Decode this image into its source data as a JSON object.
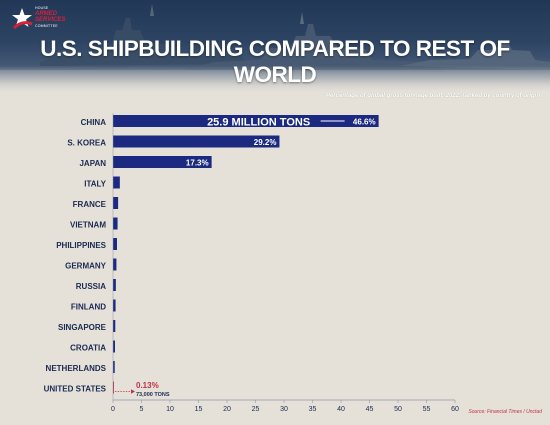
{
  "header": {
    "logo_top": "HOUSE",
    "logo_main": "ARMED SERVICES",
    "logo_bottom": "COMMITTEE",
    "title": "U.S. SHIPBUILDING COMPARED TO REST OF WORLD",
    "subtitle": "Percentage of global gross tonnage built, 2022, ranked by country of origin"
  },
  "source": "Source: Financial Times / Unctad",
  "colors": {
    "bar": "#1b2a80",
    "highlight": "#c0314a",
    "label": "#1b2a52",
    "background": "#e5e1d9"
  },
  "chart_data": {
    "type": "bar",
    "orientation": "horizontal",
    "categories": [
      "CHINA",
      "S. KOREA",
      "JAPAN",
      "ITALY",
      "FRANCE",
      "VIETNAM",
      "PHILIPPINES",
      "GERMANY",
      "RUSSIA",
      "FINLAND",
      "SINGAPORE",
      "CROATIA",
      "NETHERLANDS",
      "UNITED STATES"
    ],
    "values": [
      46.6,
      29.2,
      17.3,
      1.2,
      0.9,
      0.8,
      0.7,
      0.6,
      0.5,
      0.45,
      0.4,
      0.35,
      0.3,
      0.13
    ],
    "data_labels": {
      "CHINA": "46.6%",
      "S. KOREA": "29.2%",
      "JAPAN": "17.3%",
      "UNITED STATES": "0.13%"
    },
    "annotations": [
      {
        "category": "CHINA",
        "text": "25.9 MILLION TONS"
      },
      {
        "category": "UNITED STATES",
        "text": "73,000 TONS"
      }
    ],
    "highlight_category": "UNITED STATES",
    "xlim": [
      0,
      60
    ],
    "xticks": [
      0,
      5,
      10,
      15,
      20,
      25,
      30,
      35,
      40,
      45,
      50,
      55,
      60
    ],
    "title": "",
    "xlabel": "",
    "ylabel": "",
    "grid": false,
    "legend": "none"
  }
}
